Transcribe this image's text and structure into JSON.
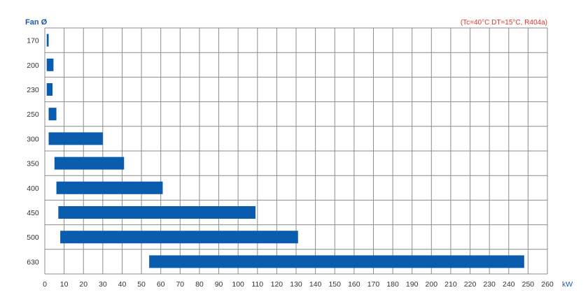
{
  "chart_data": {
    "type": "bar",
    "orientation": "horizontal",
    "ylabel": "Fan Ø",
    "xlabel": "kW",
    "note": "(Tc=40°C DT=15°C, R404a)",
    "xlim": [
      0,
      260
    ],
    "xticks": [
      0,
      10,
      20,
      30,
      40,
      50,
      60,
      70,
      80,
      90,
      100,
      110,
      120,
      130,
      140,
      150,
      160,
      170,
      180,
      190,
      200,
      210,
      220,
      230,
      240,
      250,
      260
    ],
    "grid": true,
    "bar_color": "#0a5cae",
    "categories": [
      "170",
      "200",
      "230",
      "250",
      "300",
      "350",
      "400",
      "450",
      "500",
      "630"
    ],
    "ranges": [
      [
        1,
        2
      ],
      [
        1,
        4.5
      ],
      [
        1,
        4
      ],
      [
        2,
        6
      ],
      [
        2,
        30
      ],
      [
        5,
        41
      ],
      [
        6,
        61
      ],
      [
        7,
        109
      ],
      [
        8,
        131
      ],
      [
        54,
        248
      ]
    ]
  }
}
